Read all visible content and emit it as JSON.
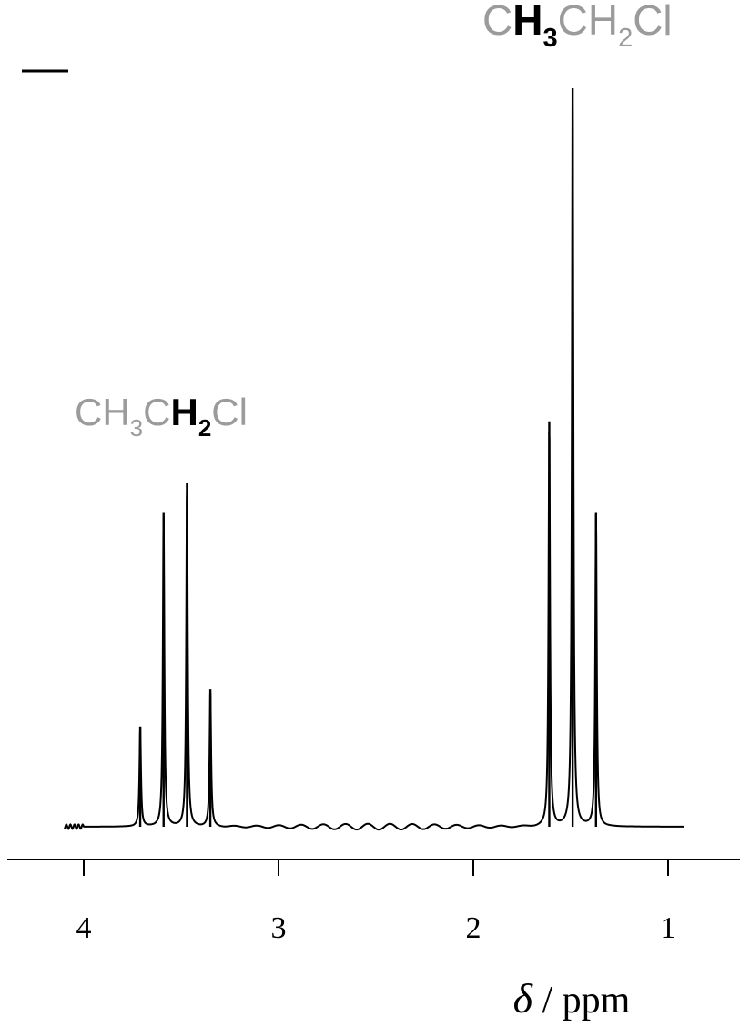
{
  "chart_data": {
    "type": "line",
    "title": "",
    "xlabel": {
      "symbol": "δ",
      "unit": " / ppm"
    },
    "ylabel": "",
    "xlim": [
      4.4,
      0.6
    ],
    "x_reversed": true,
    "ylim": [
      0,
      1
    ],
    "grid": false,
    "legend": "none",
    "x_ticks": [
      {
        "value": 4,
        "label": "4"
      },
      {
        "value": 3,
        "label": "3"
      },
      {
        "value": 2,
        "label": "2"
      },
      {
        "value": 1,
        "label": "1"
      }
    ],
    "annotations": [
      {
        "name": "ch2-label",
        "near_x": 3.45,
        "parts": [
          {
            "t": "CH",
            "bold": false,
            "sub": false
          },
          {
            "t": "3",
            "bold": false,
            "sub": true
          },
          {
            "t": "C",
            "bold": false,
            "sub": false
          },
          {
            "t": "H",
            "bold": true,
            "sub": false
          },
          {
            "t": "2",
            "bold": true,
            "sub": true
          },
          {
            "t": "Cl",
            "bold": false,
            "sub": false
          }
        ]
      },
      {
        "name": "ch3-label",
        "near_x": 1.49,
        "parts": [
          {
            "t": "C",
            "bold": false,
            "sub": false
          },
          {
            "t": "H",
            "bold": true,
            "sub": false
          },
          {
            "t": "3",
            "bold": true,
            "sub": true
          },
          {
            "t": "CH",
            "bold": false,
            "sub": false
          },
          {
            "t": "2",
            "bold": false,
            "sub": true
          },
          {
            "t": "Cl",
            "bold": false,
            "sub": false
          }
        ]
      }
    ],
    "series": [
      {
        "peaks": [
          {
            "x": 3.71,
            "intensity": 0.136,
            "label": "quartet-1"
          },
          {
            "x": 3.59,
            "intensity": 0.426,
            "label": "quartet-2"
          },
          {
            "x": 3.47,
            "intensity": 0.466,
            "label": "quartet-3"
          },
          {
            "x": 3.35,
            "intensity": 0.186,
            "label": "quartet-4"
          },
          {
            "x": 1.61,
            "intensity": 0.549,
            "label": "triplet-1"
          },
          {
            "x": 1.49,
            "intensity": 1.0,
            "label": "triplet-2"
          },
          {
            "x": 1.37,
            "intensity": 0.426,
            "label": "triplet-3"
          }
        ]
      }
    ],
    "colors": {
      "line": "#000000",
      "axis": "#000000",
      "annotation": "#9b9b9b",
      "highlight": "#000000"
    }
  }
}
